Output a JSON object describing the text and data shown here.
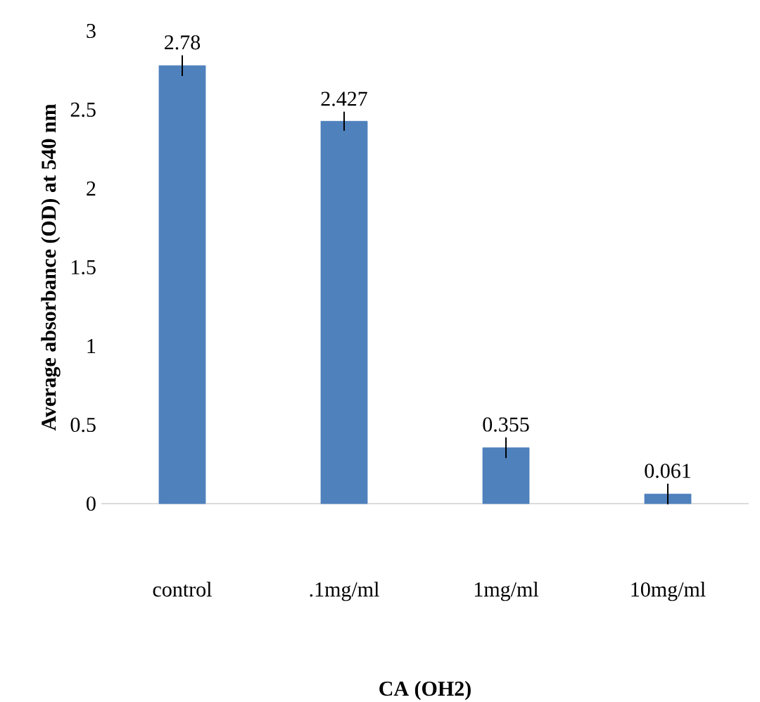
{
  "chart_data": {
    "type": "bar",
    "xlabel": "CA (OH2)",
    "ylabel": "Average absorbance (OD) at 540 nm",
    "categories": [
      "control",
      ".1mg/ml",
      "1mg/ml",
      "10mg/ml"
    ],
    "values": [
      2.78,
      2.427,
      0.355,
      0.061
    ],
    "errors": [
      0.03,
      0.025,
      0.03,
      0.03
    ],
    "color": "#4f81bd",
    "ylim": [
      0,
      3
    ],
    "yticks": [
      0,
      0.5,
      1,
      1.5,
      2,
      2.5,
      3
    ],
    "grid": false,
    "data_labels": true
  }
}
